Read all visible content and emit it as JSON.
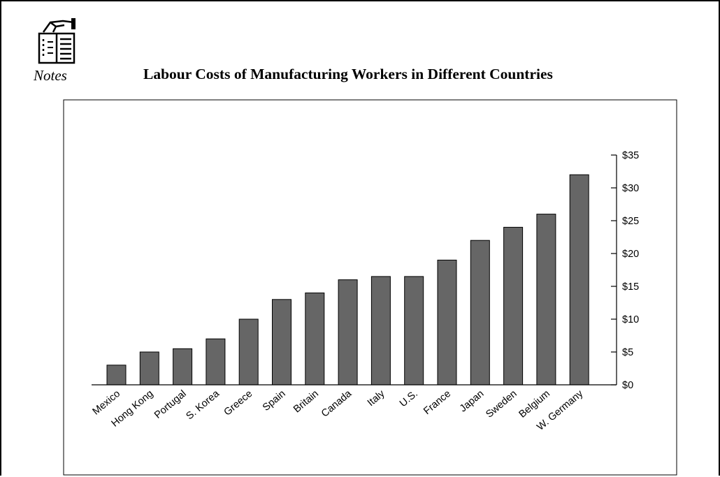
{
  "header": {
    "notes_label": "Notes",
    "icon": "notes-book-hand-icon"
  },
  "chart_data": {
    "type": "bar",
    "title": "Labour Costs of Manufacturing Workers in Different Countries",
    "xlabel": "",
    "ylabel": "",
    "categories": [
      "Mexico",
      "Hong Kong",
      "Portugal",
      "S. Korea",
      "Greece",
      "Spain",
      "Britain",
      "Canada",
      "Italy",
      "U.S.",
      "France",
      "Japan",
      "Sweden",
      "Belgium",
      "W. Germany"
    ],
    "values": [
      3,
      5,
      5.5,
      7,
      10,
      13,
      14,
      16,
      16.5,
      16.5,
      19,
      22,
      24,
      26,
      32
    ],
    "ylim": [
      0,
      35
    ],
    "yticks": [
      0,
      5,
      10,
      15,
      20,
      25,
      30,
      35
    ],
    "ytick_labels": [
      "$0",
      "$5",
      "$10",
      "$15",
      "$20",
      "$25",
      "$30",
      "$35"
    ],
    "y_axis_side": "right",
    "grid": false,
    "bar_color": "#666666"
  }
}
